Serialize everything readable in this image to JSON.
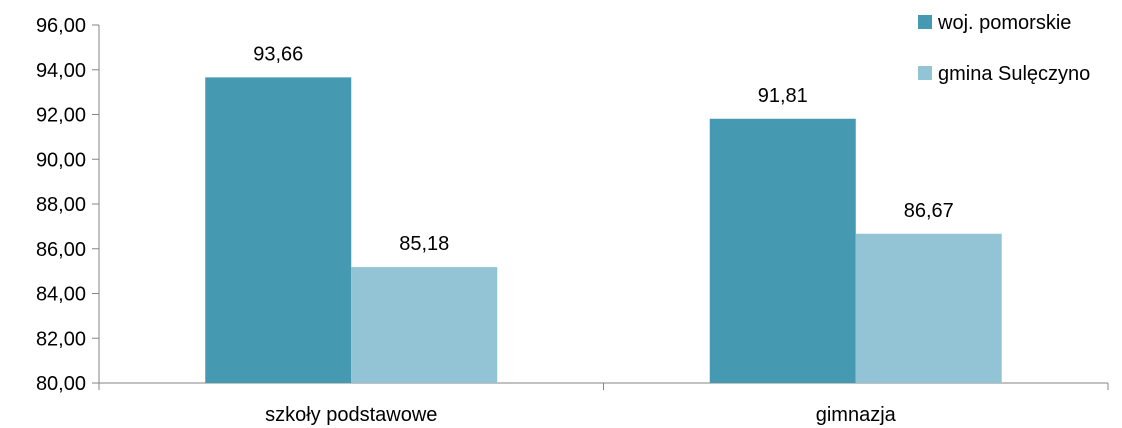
{
  "chart_data": {
    "type": "bar",
    "categories": [
      "szkoły podstawowe",
      "gimnazja"
    ],
    "series": [
      {
        "name": "woj. pomorskie",
        "values": [
          93.66,
          91.81
        ],
        "labels": [
          "93,66",
          "91,81"
        ],
        "color": "#4599B1"
      },
      {
        "name": "gmina Sulęczyno",
        "values": [
          85.18,
          86.67
        ],
        "labels": [
          "85,18",
          "86,67"
        ],
        "color": "#93C4D5"
      }
    ],
    "ylim": [
      80,
      96
    ],
    "yticks": [
      80,
      82,
      84,
      86,
      88,
      90,
      92,
      94,
      96
    ],
    "ytick_labels": [
      "80,00",
      "82,00",
      "84,00",
      "86,00",
      "88,00",
      "90,00",
      "92,00",
      "94,00",
      "96,00"
    ],
    "title": "",
    "xlabel": "",
    "ylabel": "",
    "grid": false,
    "legend_position": "top-right"
  }
}
